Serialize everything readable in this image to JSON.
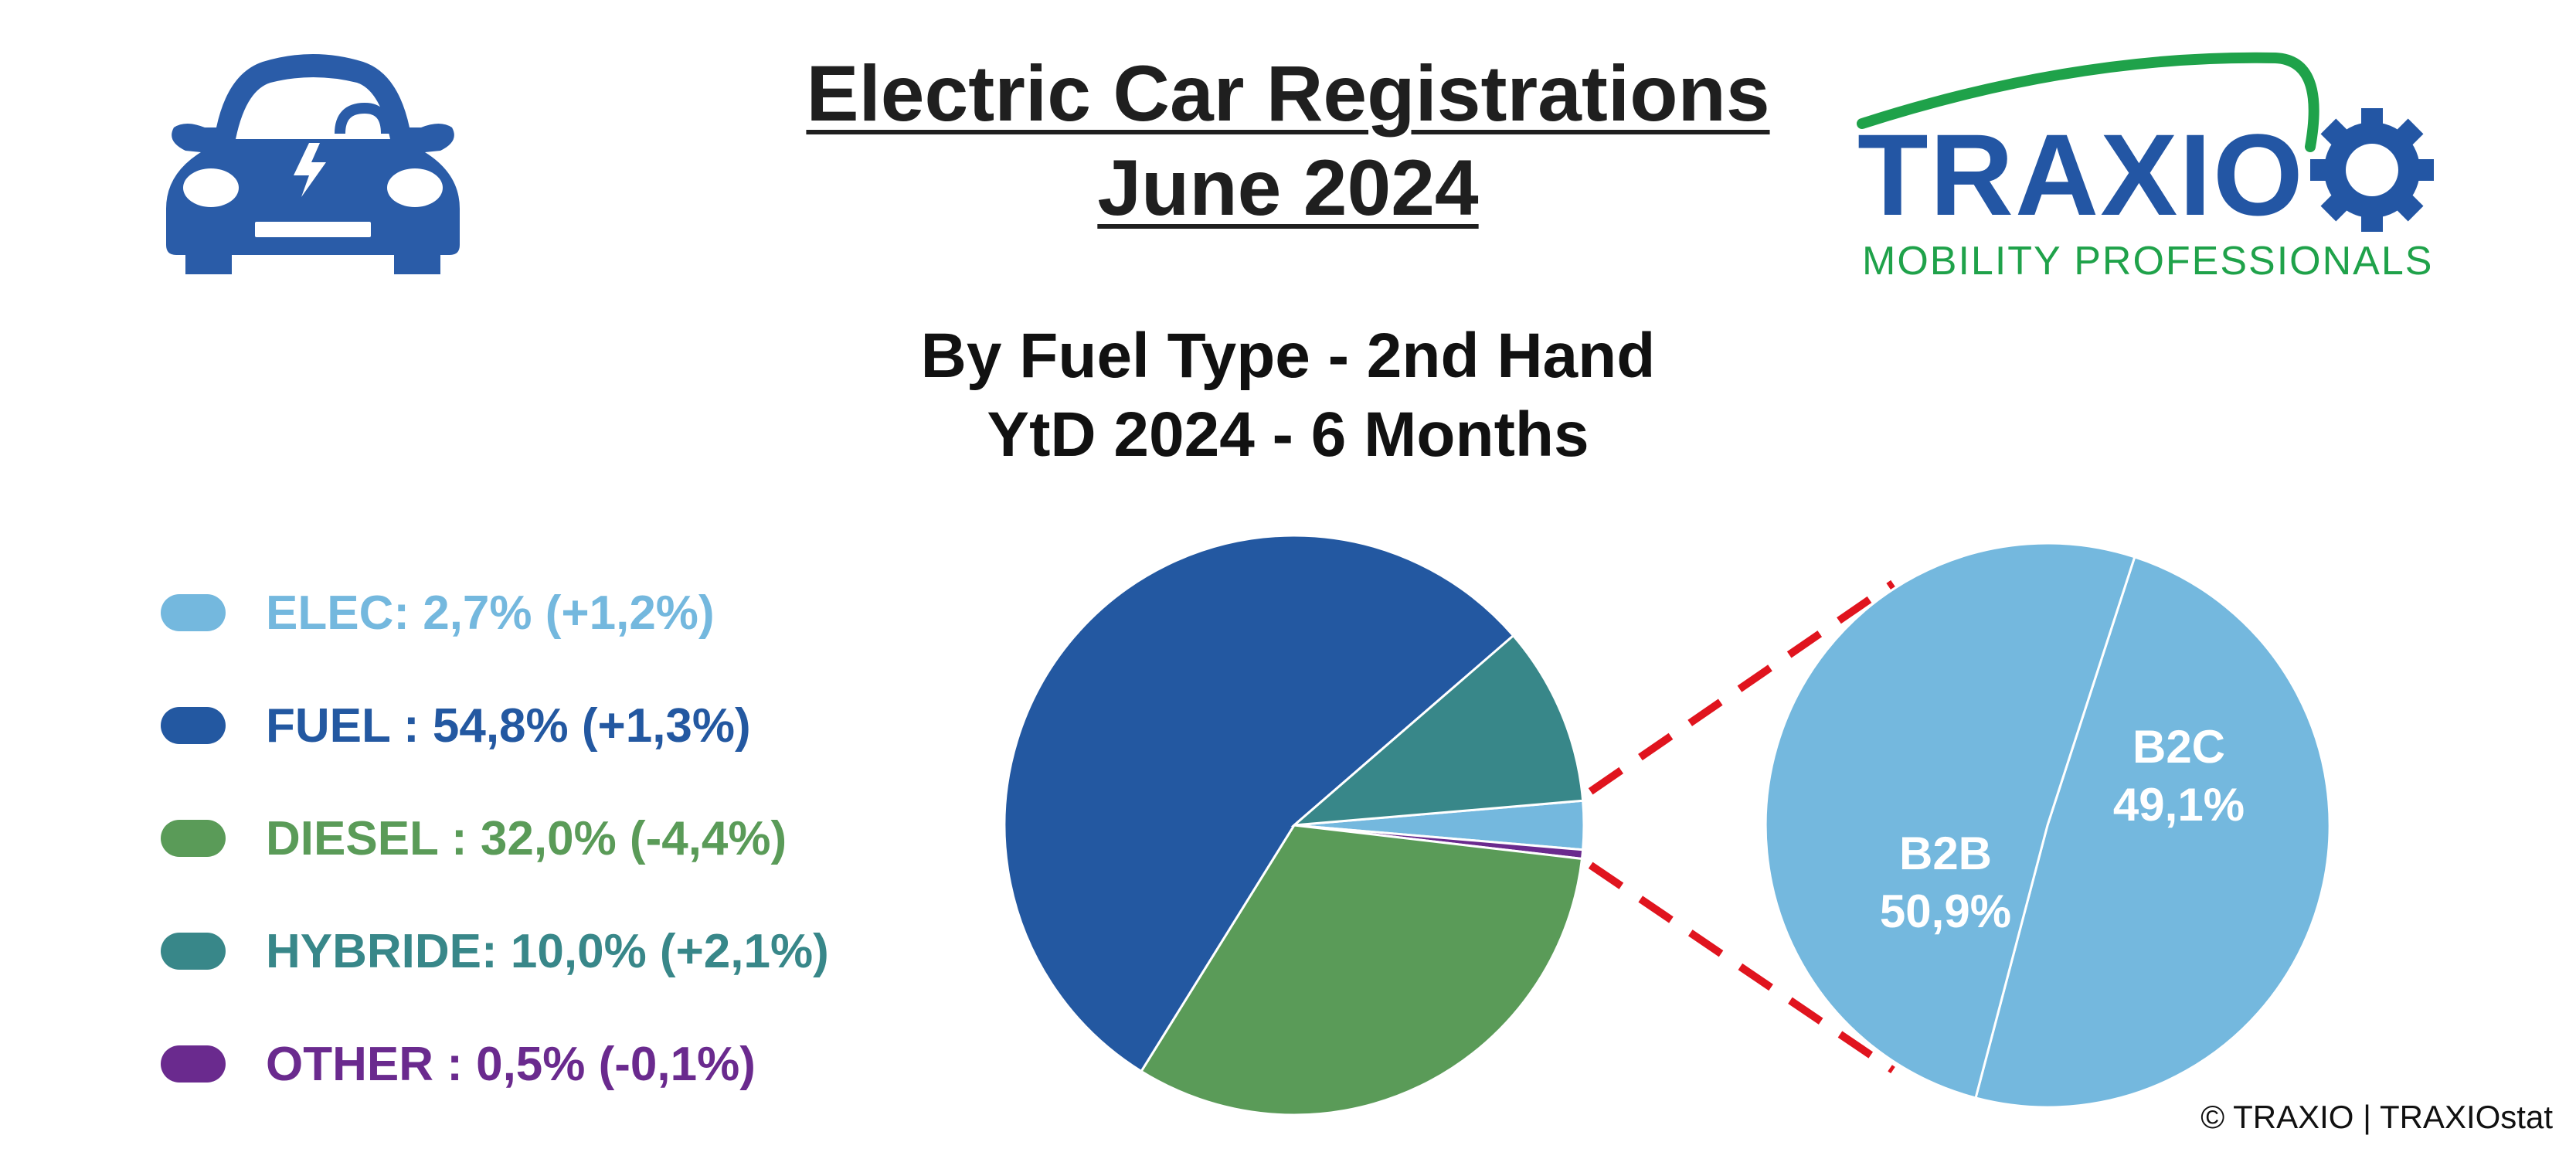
{
  "title": {
    "line1": "Electric Car Registrations",
    "line2": "June 2024"
  },
  "logo": {
    "brand": "TRAXIO",
    "tagline": "MOBILITY PROFESSIONALS",
    "colors": {
      "blue": "#2356a4",
      "green": "#1fa24a"
    }
  },
  "icon": {
    "name": "electric-car-icon",
    "color": "#2a5ca8"
  },
  "chart_data": [
    {
      "type": "pie",
      "title": "By Fuel Type - 2nd Hand",
      "subtitle": "YtD 2024 - 6 Months",
      "slices": [
        {
          "label": "ELEC",
          "value": 2.7,
          "change": "+1,2%",
          "legend": "ELEC: 2,7% (+1,2%)",
          "color": "#74b8de"
        },
        {
          "label": "FUEL",
          "value": 54.8,
          "change": "+1,3%",
          "legend": "FUEL : 54,8% (+1,3%)",
          "color": "#2358a1"
        },
        {
          "label": "DIESEL",
          "value": 32.0,
          "change": "-4,4%",
          "legend": "DIESEL : 32,0% (-4,4%)",
          "color": "#5a9b58"
        },
        {
          "label": "HYBRIDE",
          "value": 10.0,
          "change": "+2,1%",
          "legend": "HYBRIDE: 10,0% (+2,1%)",
          "color": "#388789"
        },
        {
          "label": "OTHER",
          "value": 0.5,
          "change": "-0,1%",
          "legend": "OTHER : 0,5% (-0,1%)",
          "color": "#6a2a8e"
        }
      ],
      "legend_position": "left"
    },
    {
      "type": "pie",
      "detail_of": "ELEC",
      "slices": [
        {
          "label": "B2B",
          "value": 50.9,
          "text": "50,9%"
        },
        {
          "label": "B2C",
          "value": 49.1,
          "text": "49,1%"
        }
      ],
      "color": "#74b8de",
      "connector_color": "#e0141e"
    }
  ],
  "copyright": "© TRAXIO | TRAXIOstat"
}
